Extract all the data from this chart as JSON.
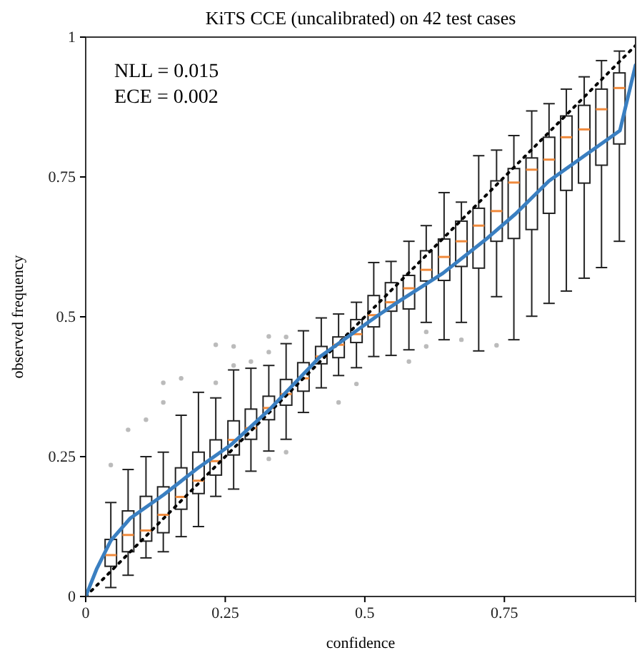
{
  "chart_data": {
    "type": "box",
    "title": "KiTS CCE (uncalibrated) on 42 test cases",
    "xlabel": "confidence",
    "ylabel": "observed frequency",
    "xlim": [
      0,
      0.985
    ],
    "ylim": [
      0,
      1
    ],
    "xticks": [
      0,
      0.25,
      0.5,
      0.75
    ],
    "yticks": [
      0,
      0.25,
      0.5,
      0.75,
      1
    ],
    "annotations": [
      "NLL = 0.015",
      "ECE = 0.002"
    ],
    "series": [
      {
        "color": "#222222",
        "x": [
          0.045,
          0.076,
          0.108,
          0.139,
          0.171,
          0.202,
          0.233,
          0.265,
          0.296,
          0.328,
          0.359,
          0.39,
          0.422,
          0.453,
          0.485,
          0.516,
          0.547,
          0.579,
          0.61,
          0.642,
          0.673,
          0.704,
          0.736,
          0.767,
          0.799,
          0.83,
          0.861,
          0.893,
          0.924,
          0.956
        ],
        "boxes": [
          {
            "low": 0.016,
            "q1": 0.054,
            "median": 0.074,
            "q3": 0.102,
            "high": 0.168,
            "outliers": [
              0.235
            ]
          },
          {
            "low": 0.038,
            "q1": 0.08,
            "median": 0.11,
            "q3": 0.153,
            "high": 0.227,
            "outliers": [
              0.298
            ]
          },
          {
            "low": 0.069,
            "q1": 0.099,
            "median": 0.118,
            "q3": 0.179,
            "high": 0.25,
            "outliers": [
              0.316
            ]
          },
          {
            "low": 0.08,
            "q1": 0.114,
            "median": 0.146,
            "q3": 0.196,
            "high": 0.258,
            "outliers": [
              0.347,
              0.382
            ]
          },
          {
            "low": 0.107,
            "q1": 0.156,
            "median": 0.178,
            "q3": 0.23,
            "high": 0.324,
            "outliers": [
              0.39
            ]
          },
          {
            "low": 0.125,
            "q1": 0.184,
            "median": 0.207,
            "q3": 0.258,
            "high": 0.365
          },
          {
            "low": 0.179,
            "q1": 0.217,
            "median": 0.242,
            "q3": 0.28,
            "high": 0.355,
            "outliers": [
              0.382,
              0.45
            ]
          },
          {
            "low": 0.192,
            "q1": 0.253,
            "median": 0.28,
            "q3": 0.314,
            "high": 0.405,
            "outliers": [
              0.413,
              0.447
            ]
          },
          {
            "low": 0.224,
            "q1": 0.281,
            "median": 0.301,
            "q3": 0.335,
            "high": 0.408,
            "outliers": [
              0.42
            ]
          },
          {
            "low": 0.26,
            "q1": 0.316,
            "median": 0.337,
            "q3": 0.358,
            "high": 0.413,
            "outliers": [
              0.465,
              0.437,
              0.246
            ]
          },
          {
            "low": 0.281,
            "q1": 0.342,
            "median": 0.362,
            "q3": 0.388,
            "high": 0.452,
            "outliers": [
              0.464,
              0.258
            ]
          },
          {
            "low": 0.329,
            "q1": 0.367,
            "median": 0.39,
            "q3": 0.418,
            "high": 0.475
          },
          {
            "low": 0.373,
            "q1": 0.416,
            "median": 0.429,
            "q3": 0.447,
            "high": 0.498
          },
          {
            "low": 0.395,
            "q1": 0.427,
            "median": 0.45,
            "q3": 0.464,
            "high": 0.505,
            "outliers": [
              0.347
            ]
          },
          {
            "low": 0.409,
            "q1": 0.454,
            "median": 0.469,
            "q3": 0.495,
            "high": 0.526,
            "outliers": [
              0.38
            ]
          },
          {
            "low": 0.429,
            "q1": 0.482,
            "median": 0.503,
            "q3": 0.538,
            "high": 0.597
          },
          {
            "low": 0.431,
            "q1": 0.51,
            "median": 0.526,
            "q3": 0.561,
            "high": 0.599
          },
          {
            "low": 0.441,
            "q1": 0.514,
            "median": 0.551,
            "q3": 0.574,
            "high": 0.635,
            "outliers": [
              0.42
            ]
          },
          {
            "low": 0.49,
            "q1": 0.564,
            "median": 0.584,
            "q3": 0.618,
            "high": 0.663,
            "outliers": [
              0.473,
              0.447
            ]
          },
          {
            "low": 0.459,
            "q1": 0.565,
            "median": 0.607,
            "q3": 0.639,
            "high": 0.722
          },
          {
            "low": 0.49,
            "q1": 0.59,
            "median": 0.635,
            "q3": 0.671,
            "high": 0.705,
            "outliers": [
              0.459
            ]
          },
          {
            "low": 0.439,
            "q1": 0.587,
            "median": 0.663,
            "q3": 0.694,
            "high": 0.788
          },
          {
            "low": 0.536,
            "q1": 0.635,
            "median": 0.689,
            "q3": 0.743,
            "high": 0.798,
            "outliers": [
              0.449
            ]
          },
          {
            "low": 0.459,
            "q1": 0.64,
            "median": 0.74,
            "q3": 0.765,
            "high": 0.824
          },
          {
            "low": 0.501,
            "q1": 0.656,
            "median": 0.763,
            "q3": 0.784,
            "high": 0.868
          },
          {
            "low": 0.524,
            "q1": 0.685,
            "median": 0.781,
            "q3": 0.821,
            "high": 0.881
          },
          {
            "low": 0.546,
            "q1": 0.726,
            "median": 0.821,
            "q3": 0.859,
            "high": 0.907
          },
          {
            "low": 0.569,
            "q1": 0.739,
            "median": 0.835,
            "q3": 0.878,
            "high": 0.929
          },
          {
            "low": 0.588,
            "q1": 0.771,
            "median": 0.871,
            "q3": 0.907,
            "high": 0.958
          },
          {
            "low": 0.635,
            "q1": 0.809,
            "median": 0.909,
            "q3": 0.936,
            "high": 0.975
          }
        ]
      },
      {
        "type": "line",
        "color": "#000000",
        "line_style": "dotted",
        "x": [
          0,
          0.985
        ],
        "values": [
          0,
          0.985
        ]
      },
      {
        "type": "line",
        "color": "#3a7fc1",
        "line_style": "solid",
        "x": [
          0,
          0.02,
          0.045,
          0.08,
          0.14,
          0.2,
          0.26,
          0.33,
          0.42,
          0.52,
          0.56,
          0.64,
          0.72,
          0.77,
          0.83,
          0.957,
          0.985
        ],
        "values": [
          0,
          0.05,
          0.1,
          0.14,
          0.182,
          0.229,
          0.271,
          0.335,
          0.429,
          0.5,
          0.527,
          0.578,
          0.641,
          0.684,
          0.743,
          0.833,
          0.95
        ]
      }
    ]
  }
}
